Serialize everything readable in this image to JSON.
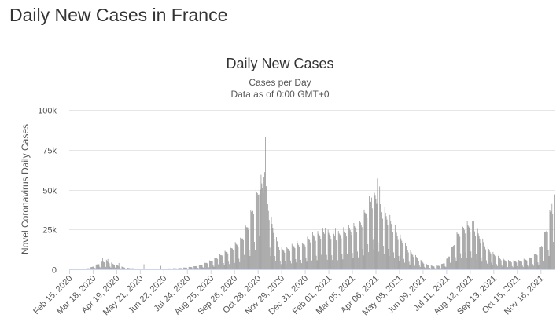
{
  "page": {
    "title": "Daily New Cases in France"
  },
  "chart_data": {
    "type": "bar",
    "title": "Daily New Cases",
    "subtitle": "Cases per Day",
    "subtitle2": "Data as of 0:00 GMT+0",
    "xlabel": "",
    "ylabel": "Novel Coronavirus Daily Cases",
    "ylim": [
      0,
      100000
    ],
    "yticks": [
      0,
      25000,
      50000,
      75000,
      100000
    ],
    "ytick_labels": [
      "0",
      "25k",
      "50k",
      "75k",
      "100k"
    ],
    "grid": true,
    "bar_color": "#999999",
    "x_start": "2020-02-15",
    "x_end": "2021-12-05",
    "xtick_labels": [
      "Feb 15, 2020",
      "Mar 18, 2020",
      "Apr 19, 2020",
      "May 21, 2020",
      "Jun 22, 2020",
      "Jul 24, 2020",
      "Aug 25, 2020",
      "Sep 26, 2020",
      "Oct 28, 2020",
      "Nov 29, 2020",
      "Dec 31, 2020",
      "Feb 01, 2021",
      "Mar 05, 2021",
      "Apr 06, 2021",
      "May 08, 2021",
      "Jun 09, 2021",
      "Jul 11, 2021",
      "Aug 12, 2021",
      "Sep 13, 2021",
      "Oct 15, 2021",
      "Nov 16, 2021"
    ],
    "series": [
      {
        "weekly": [
          [
            "2020-02-15",
            0
          ],
          [
            "2020-02-22",
            5
          ],
          [
            "2020-02-29",
            60
          ],
          [
            "2020-03-07",
            300
          ],
          [
            "2020-03-14",
            900
          ],
          [
            "2020-03-21",
            2200
          ],
          [
            "2020-03-28",
            3800
          ],
          [
            "2020-04-04",
            5000
          ],
          [
            "2020-04-11",
            3600
          ],
          [
            "2020-04-18",
            2400
          ],
          [
            "2020-04-25",
            1500
          ],
          [
            "2020-05-02",
            900
          ],
          [
            "2020-05-09",
            600
          ],
          [
            "2020-05-16",
            450
          ],
          [
            "2020-05-23",
            380
          ],
          [
            "2020-05-30",
            400
          ],
          [
            "2020-06-06",
            350
          ],
          [
            "2020-06-13",
            330
          ],
          [
            "2020-06-20",
            350
          ],
          [
            "2020-06-27",
            450
          ],
          [
            "2020-07-04",
            550
          ],
          [
            "2020-07-11",
            650
          ],
          [
            "2020-07-18",
            850
          ],
          [
            "2020-07-25",
            1200
          ],
          [
            "2020-08-01",
            1500
          ],
          [
            "2020-08-08",
            2200
          ],
          [
            "2020-08-15",
            3200
          ],
          [
            "2020-08-22",
            4300
          ],
          [
            "2020-08-29",
            5600
          ],
          [
            "2020-09-05",
            7300
          ],
          [
            "2020-09-12",
            9000
          ],
          [
            "2020-09-19",
            11000
          ],
          [
            "2020-09-26",
            13500
          ],
          [
            "2020-10-03",
            15000
          ],
          [
            "2020-10-10",
            21000
          ],
          [
            "2020-10-17",
            28000
          ],
          [
            "2020-10-24",
            40000
          ],
          [
            "2020-10-31",
            48000
          ],
          [
            "2020-11-07",
            44000
          ],
          [
            "2020-11-14",
            28000
          ],
          [
            "2020-11-21",
            17000
          ],
          [
            "2020-11-28",
            11000
          ],
          [
            "2020-12-05",
            11000
          ],
          [
            "2020-12-12",
            12500
          ],
          [
            "2020-12-19",
            14500
          ],
          [
            "2020-12-26",
            13000
          ],
          [
            "2021-01-02",
            16000
          ],
          [
            "2021-01-09",
            18500
          ],
          [
            "2021-01-16",
            19000
          ],
          [
            "2021-01-23",
            20500
          ],
          [
            "2021-01-30",
            20000
          ],
          [
            "2021-02-06",
            19500
          ],
          [
            "2021-02-13",
            19000
          ],
          [
            "2021-02-20",
            21000
          ],
          [
            "2021-02-27",
            22000
          ],
          [
            "2021-03-06",
            23000
          ],
          [
            "2021-03-13",
            25000
          ],
          [
            "2021-03-20",
            29000
          ],
          [
            "2021-03-27",
            36000
          ],
          [
            "2021-04-03",
            42000
          ],
          [
            "2021-04-10",
            37000
          ],
          [
            "2021-04-17",
            32000
          ],
          [
            "2021-04-24",
            28000
          ],
          [
            "2021-05-01",
            23000
          ],
          [
            "2021-05-08",
            18000
          ],
          [
            "2021-05-15",
            14000
          ],
          [
            "2021-05-22",
            10000
          ],
          [
            "2021-05-29",
            7500
          ],
          [
            "2021-06-05",
            5000
          ],
          [
            "2021-06-12",
            3200
          ],
          [
            "2021-06-19",
            2000
          ],
          [
            "2021-06-26",
            1800
          ],
          [
            "2021-07-03",
            2400
          ],
          [
            "2021-07-10",
            4500
          ],
          [
            "2021-07-17",
            10000
          ],
          [
            "2021-07-24",
            18000
          ],
          [
            "2021-07-31",
            23000
          ],
          [
            "2021-08-07",
            24000
          ],
          [
            "2021-08-14",
            25000
          ],
          [
            "2021-08-21",
            21000
          ],
          [
            "2021-08-28",
            16000
          ],
          [
            "2021-09-04",
            12000
          ],
          [
            "2021-09-11",
            9000
          ],
          [
            "2021-09-18",
            7000
          ],
          [
            "2021-09-25",
            5500
          ],
          [
            "2021-10-02",
            4800
          ],
          [
            "2021-10-09",
            4500
          ],
          [
            "2021-10-16",
            4600
          ],
          [
            "2021-10-23",
            5200
          ],
          [
            "2021-10-30",
            6000
          ],
          [
            "2021-11-06",
            7500
          ],
          [
            "2021-11-13",
            10000
          ],
          [
            "2021-11-20",
            17000
          ],
          [
            "2021-11-27",
            28000
          ],
          [
            "2021-12-04",
            40000
          ]
        ],
        "peaks": [
          [
            "2020-11-07",
            83000
          ],
          [
            "2020-11-06",
            61000
          ],
          [
            "2020-11-05",
            58000
          ],
          [
            "2020-10-31",
            50000
          ],
          [
            "2020-10-29",
            47000
          ],
          [
            "2021-04-08",
            57000
          ],
          [
            "2021-04-11",
            52000
          ],
          [
            "2021-04-04",
            48000
          ],
          [
            "2021-03-31",
            45000
          ],
          [
            "2021-08-17",
            30000
          ],
          [
            "2021-12-05",
            47000
          ],
          [
            "2020-03-31",
            7000
          ],
          [
            "2020-04-07",
            6500
          ],
          [
            "2020-04-22",
            4000
          ],
          [
            "2020-05-26",
            3200
          ],
          [
            "2020-06-18",
            2200
          ],
          [
            "2021-01-27",
            26000
          ],
          [
            "2021-02-10",
            25500
          ],
          [
            "2021-03-17",
            28000
          ],
          [
            "2021-12-01",
            41000
          ]
        ]
      }
    ]
  }
}
